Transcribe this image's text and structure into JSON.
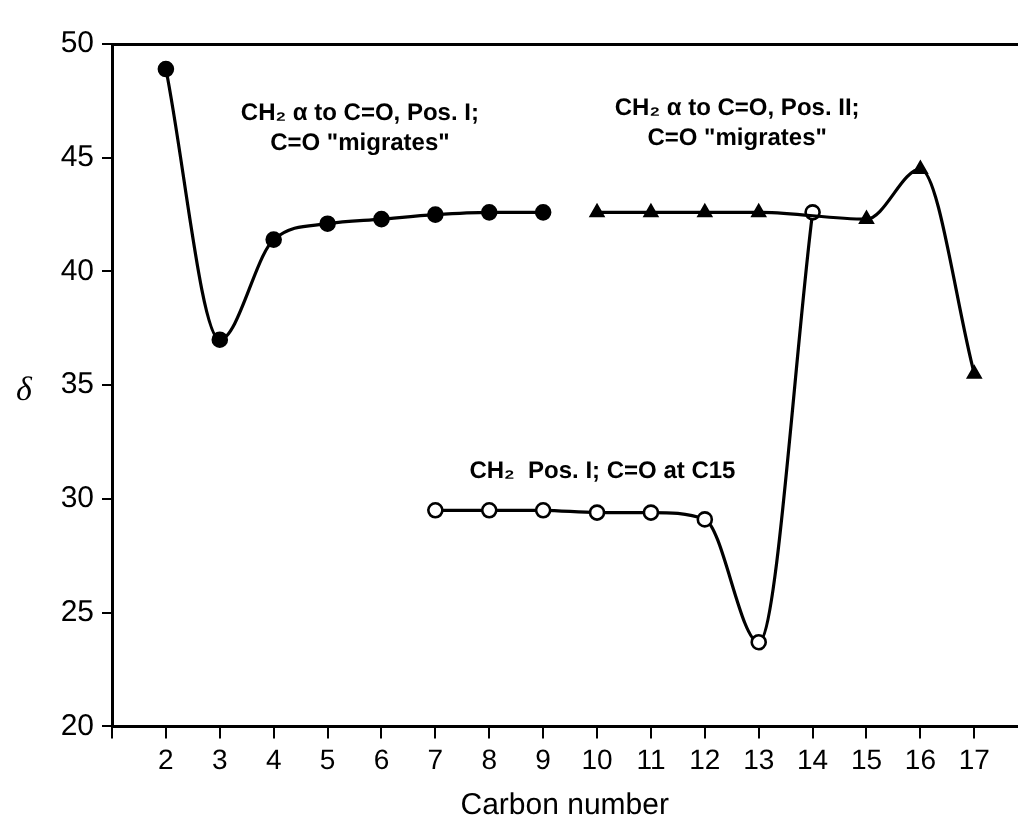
{
  "chart_data": {
    "type": "line",
    "xlabel": "Carbon number",
    "ylabel": "δ",
    "xlim": [
      1,
      17.8
    ],
    "xticks": [
      {
        "value": 1,
        "label": null
      },
      2,
      3,
      4,
      5,
      6,
      7,
      8,
      9,
      10,
      11,
      12,
      13,
      14,
      15,
      16,
      17
    ],
    "ylim": [
      20,
      50
    ],
    "yticks": [
      20,
      25,
      30,
      35,
      40,
      45,
      50
    ],
    "grid": false,
    "legend": false,
    "series": [
      {
        "name": "CH₂ α to C=O, Pos. I;\nC=O \"migrates\"",
        "color": "#000000",
        "marker": "circle",
        "x": [
          2,
          3,
          4,
          5,
          6,
          7,
          8,
          9
        ],
        "values": [
          48.9,
          37.0,
          41.4,
          42.1,
          42.3,
          42.5,
          42.6,
          42.6
        ]
      },
      {
        "name": "CH₂ α to C=O, Pos. II;\nC=O \"migrates\"",
        "color": "#000000",
        "marker": "triangle",
        "x": [
          10,
          11,
          12,
          13,
          14,
          15,
          16,
          17
        ],
        "values": [
          42.6,
          42.6,
          42.6,
          42.6,
          null,
          42.3,
          44.5,
          35.5
        ]
      },
      {
        "name": "CH₂  Pos. I; C=O at C15",
        "color": "#000000",
        "marker": "open circle",
        "x": [
          7,
          8,
          9,
          10,
          11,
          12,
          13,
          14
        ],
        "values": [
          29.5,
          29.5,
          29.5,
          29.4,
          29.4,
          29.1,
          23.7,
          42.6
        ]
      }
    ]
  }
}
